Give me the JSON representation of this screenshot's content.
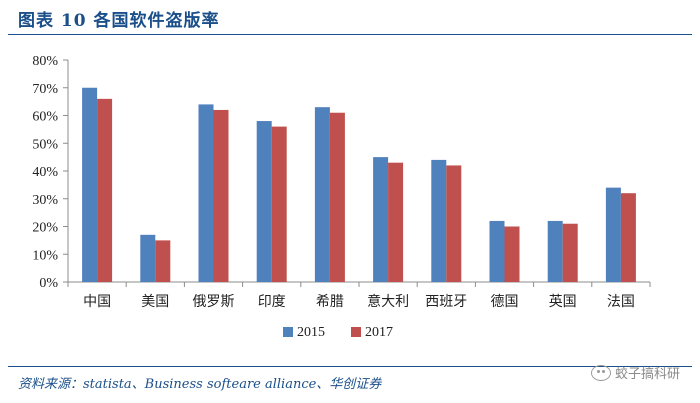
{
  "header": {
    "title": "图表 10 各国软件盗版率"
  },
  "chart_data": {
    "type": "bar",
    "categories": [
      "中国",
      "美国",
      "俄罗斯",
      "印度",
      "希腊",
      "意大利",
      "西班牙",
      "德国",
      "英国",
      "法国"
    ],
    "series": [
      {
        "name": "2015",
        "color": "#4f81bd",
        "values": [
          70,
          17,
          64,
          58,
          63,
          45,
          44,
          22,
          22,
          34
        ]
      },
      {
        "name": "2017",
        "color": "#c0504d",
        "values": [
          66,
          15,
          62,
          56,
          61,
          43,
          42,
          20,
          21,
          32
        ]
      }
    ],
    "ylim": [
      0,
      80
    ],
    "yticks": [
      0,
      10,
      20,
      30,
      40,
      50,
      60,
      70,
      80
    ],
    "ytick_labels": [
      "0%",
      "10%",
      "20%",
      "30%",
      "40%",
      "50%",
      "60%",
      "70%",
      "80%"
    ],
    "grid": false,
    "legend": "bottom-center"
  },
  "footer": {
    "source": "资料来源：statista、Business softeare alliance、华创证券",
    "watermark_text": "蛟子搞科研",
    "watermark_icon": "wechat-icon"
  }
}
